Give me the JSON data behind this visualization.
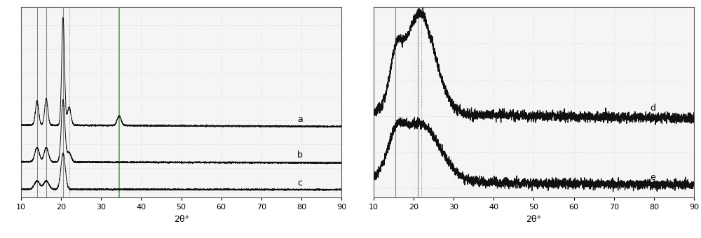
{
  "xlim": [
    10,
    90
  ],
  "xlabel": "2θ°",
  "xticks": [
    10,
    20,
    30,
    40,
    50,
    60,
    70,
    80,
    90
  ],
  "left_vlines": [
    {
      "x": 14.0,
      "color": "#888888",
      "lw": 0.8,
      "ls": "solid"
    },
    {
      "x": 16.3,
      "color": "#888888",
      "lw": 0.8,
      "ls": "solid"
    },
    {
      "x": 20.5,
      "color": "#888888",
      "lw": 0.8,
      "ls": "solid"
    },
    {
      "x": 22.0,
      "color": "#888888",
      "lw": 0.8,
      "ls": "dotted"
    },
    {
      "x": 34.5,
      "color": "#44aa44",
      "lw": 1.2,
      "ls": "solid"
    }
  ],
  "right_vlines": [
    {
      "x": 15.5,
      "color": "#888888",
      "lw": 0.8,
      "ls": "solid"
    },
    {
      "x": 21.0,
      "color": "#888888",
      "lw": 0.8,
      "ls": "solid"
    },
    {
      "x": 22.0,
      "color": "#888888",
      "lw": 0.8,
      "ls": "dotted"
    }
  ],
  "background_color": "#f5f5f5",
  "grid_color": "#c8c8c8",
  "line_color": "#111111",
  "label_fontsize": 9,
  "tick_fontsize": 8
}
